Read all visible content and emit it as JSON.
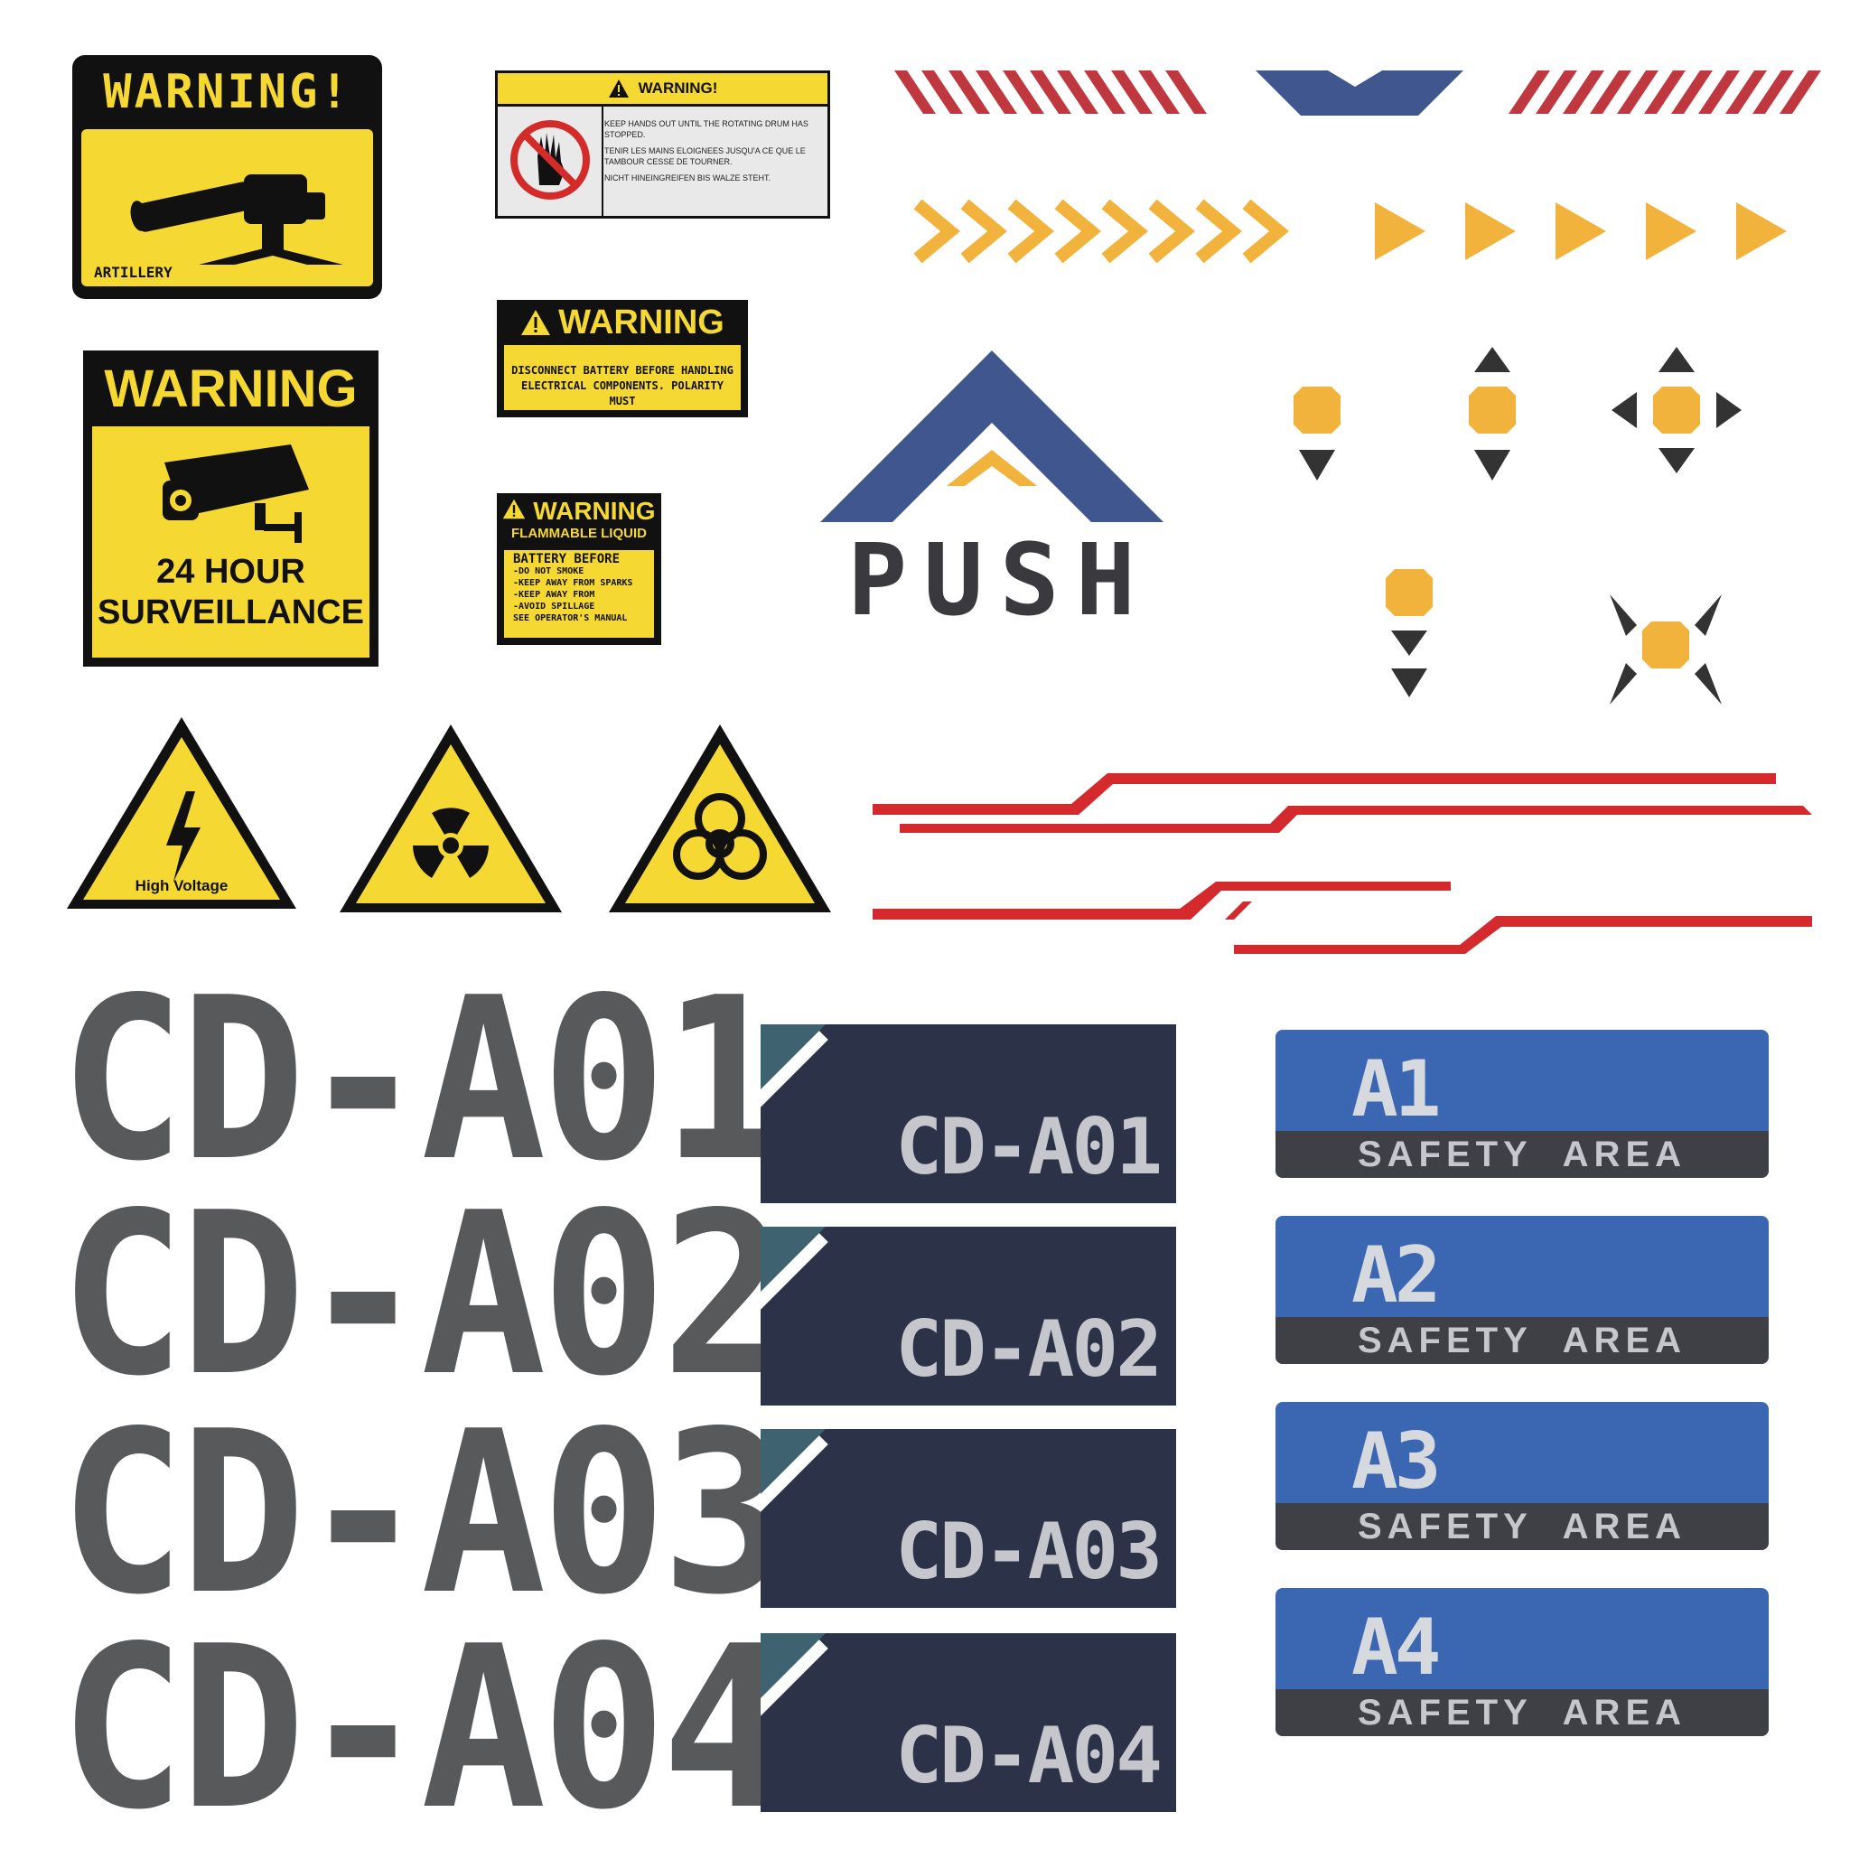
{
  "artillery_sign": {
    "title": "WARNING!",
    "caption": "ARTILLERY"
  },
  "drum_sign": {
    "title": "WARNING!",
    "lines": [
      "KEEP HANDS OUT UNTIL THE ROTATING DRUM HAS STOPPED.",
      "TENIR LES MAINS ELOIGNEES JUSQU'A CE QUE LE TAMBOUR CESSE DE TOURNER.",
      "NICHT HINEINGREIFEN BIS WALZE STEHT."
    ]
  },
  "battery_sign": {
    "title": "WARNING",
    "text": "DISCONNECT BATTERY BEFORE HANDLING ELECTRICAL COMPONENTS. POLARITY MUST"
  },
  "flammable_sign": {
    "title": "WARNING",
    "subtitle": "FLAMMABLE LIQUID",
    "body_title": "BATTERY BEFORE",
    "lines": [
      "-DO NOT SMOKE",
      "-KEEP AWAY FROM SPARKS",
      "-KEEP AWAY FROM",
      "-AVOID SPILLAGE",
      "SEE OPERATOR'S MANUAL"
    ]
  },
  "surveillance_sign": {
    "title": "WARNING",
    "line1": "24 HOUR",
    "line2": "SURVEILLANCE"
  },
  "hazard_triangles": {
    "high_voltage_label": "High Voltage"
  },
  "push_logo": {
    "word": "PUSH"
  },
  "big_labels": [
    "CD-A01",
    "CD-A02",
    "CD-A03",
    "CD-A04"
  ],
  "navy_panels": [
    {
      "code": "CD-A01"
    },
    {
      "code": "CD-A02"
    },
    {
      "code": "CD-A03"
    },
    {
      "code": "CD-A04"
    }
  ],
  "safety_panels": [
    {
      "id": "A1",
      "label": "SAFETY AREA"
    },
    {
      "id": "A2",
      "label": "SAFETY AREA"
    },
    {
      "id": "A3",
      "label": "SAFETY AREA"
    },
    {
      "id": "A4",
      "label": "SAFETY AREA"
    }
  ],
  "colors": {
    "warning_yellow": "#f6d832",
    "stripe_red": "#c0383f",
    "navy_blue": "#40568f",
    "arrow_orange": "#f2b33d",
    "line_red": "#d42a2e",
    "panel_navy": "#2c3348",
    "safety_blue": "#3b67b2",
    "stencil_grey": "#58595b"
  }
}
